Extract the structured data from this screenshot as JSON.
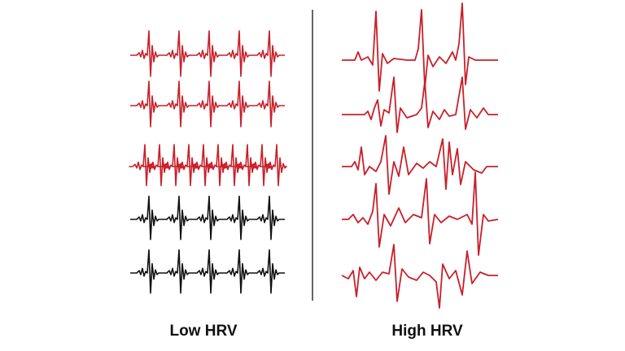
{
  "labels": {
    "low": "Low HRV",
    "high": "High HRV"
  },
  "colors": {
    "red": "#c8202a",
    "black": "#111111",
    "divider": "#333333"
  },
  "panels": {
    "low": {
      "traces": [
        {
          "color": "red"
        },
        {
          "color": "red"
        },
        {
          "color": "red"
        },
        {
          "color": "black"
        },
        {
          "color": "black"
        }
      ]
    },
    "high": {
      "traces": [
        {
          "color": "red"
        },
        {
          "color": "red"
        },
        {
          "color": "red"
        },
        {
          "color": "red"
        },
        {
          "color": "red"
        }
      ]
    }
  }
}
